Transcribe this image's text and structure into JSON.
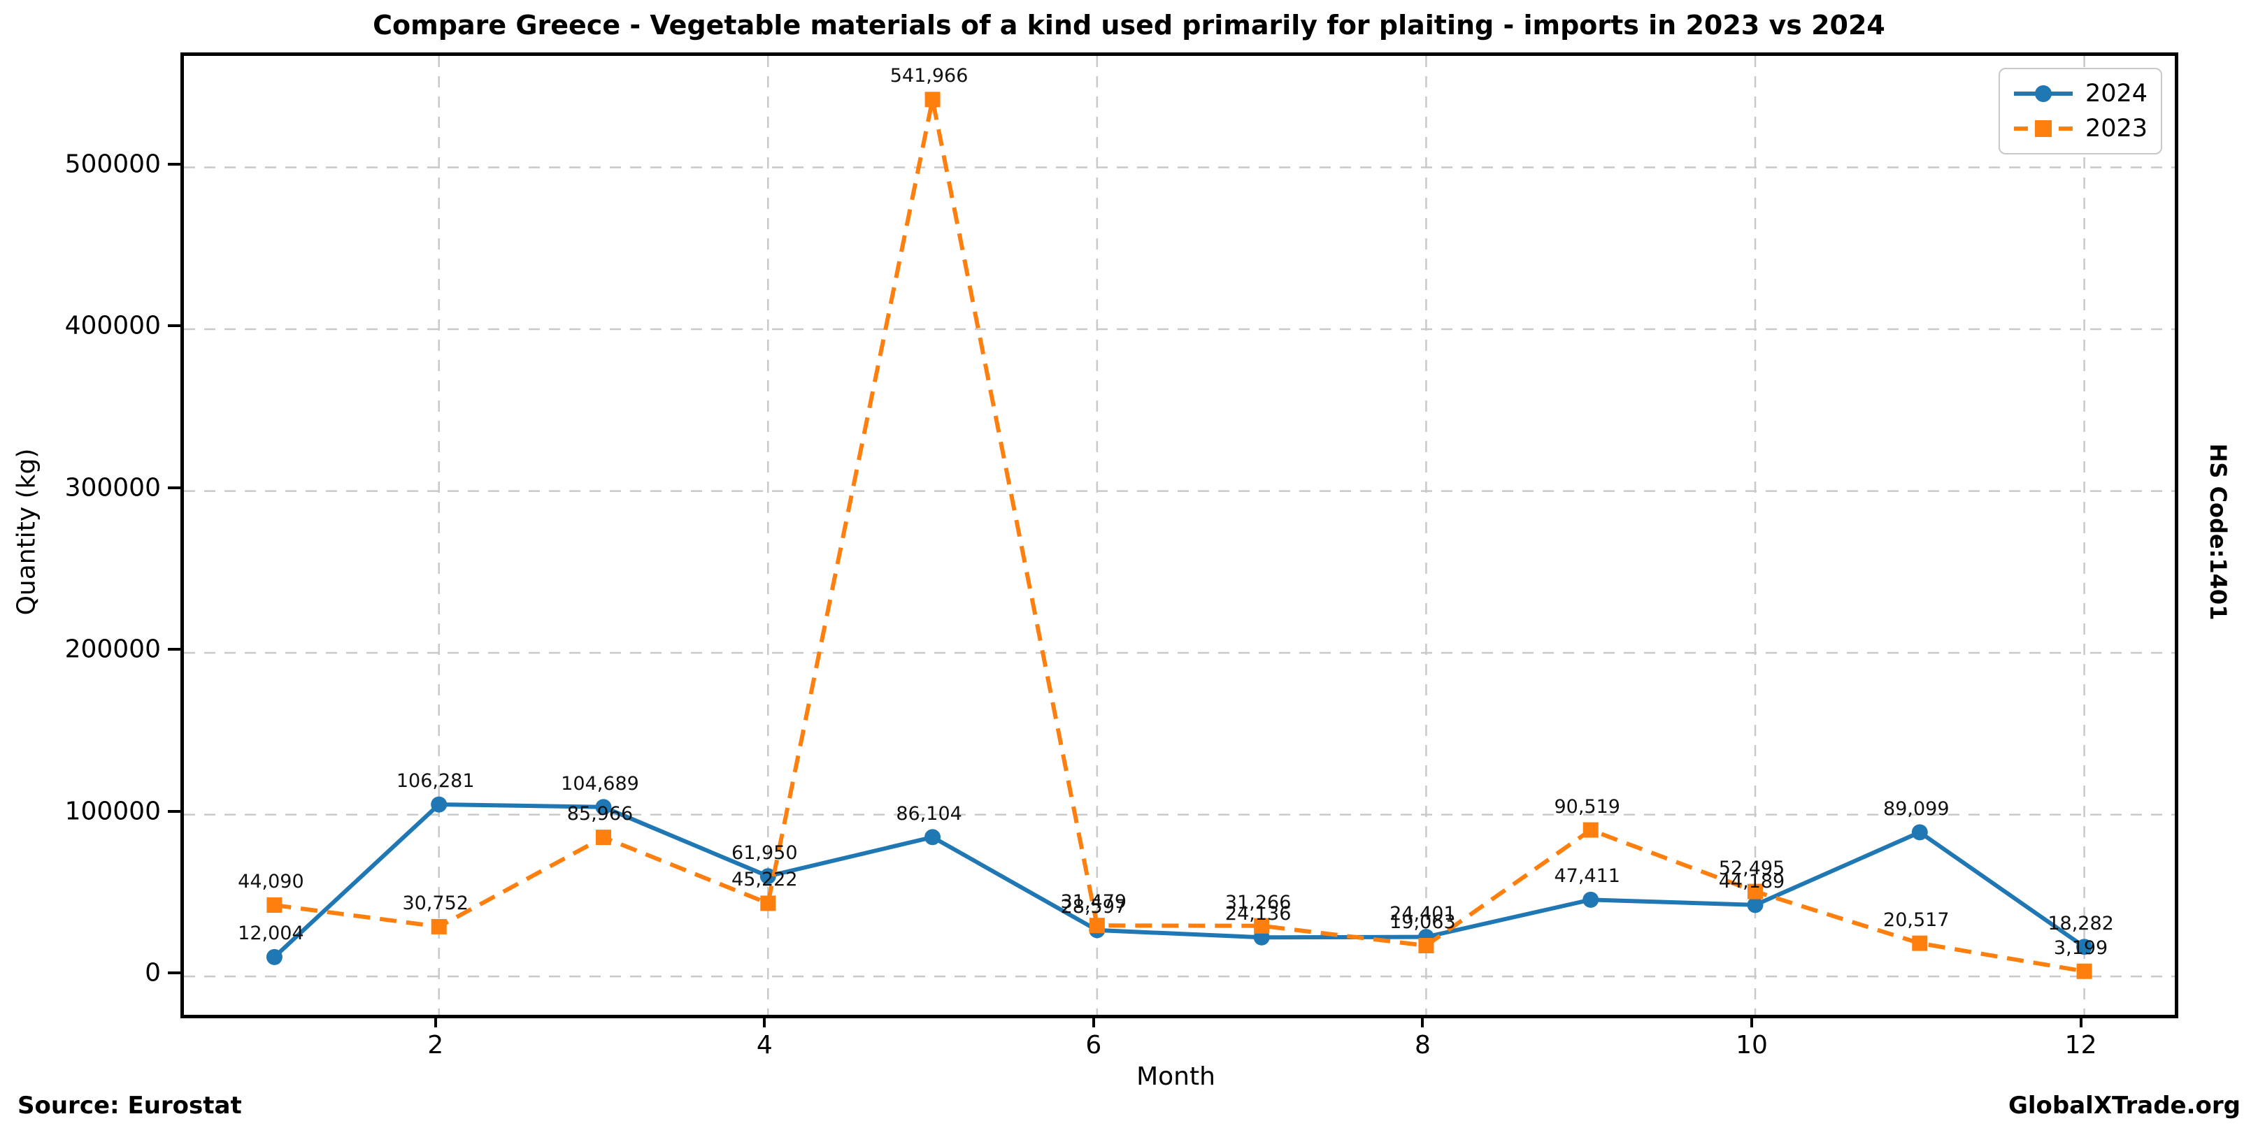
{
  "header": {
    "title": "Compare Greece - Vegetable materials of a kind used primarily for plaiting - imports in 2023 vs 2024"
  },
  "footer": {
    "source": "Source: Eurostat",
    "brand": "GlobalXTrade.org"
  },
  "side_label": "HS Code:1401",
  "colors": {
    "series_2024": "#1f77b4",
    "series_2023": "#ff7f0e",
    "grid": "#c9c9c9",
    "axis": "#000000"
  },
  "chart_data": {
    "type": "line",
    "title": "Compare Greece - Vegetable materials of a kind used primarily for plaiting - imports in 2023 vs 2024",
    "xlabel": "Month",
    "ylabel": "Quantity (kg)",
    "x": [
      1,
      2,
      3,
      4,
      5,
      6,
      7,
      8,
      9,
      10,
      11,
      12
    ],
    "xticks": [
      2,
      4,
      6,
      8,
      10,
      12
    ],
    "yticks": [
      0,
      100000,
      200000,
      300000,
      400000,
      500000
    ],
    "xlim": [
      0.45,
      12.55
    ],
    "ylim": [
      -23700,
      568900
    ],
    "grid": true,
    "legend_position": "upper right",
    "series": [
      {
        "name": "2024",
        "color": "#1f77b4",
        "line_style": "solid",
        "marker": "circle",
        "values": [
          12004,
          106281,
          104689,
          61950,
          86104,
          28597,
          24136,
          24401,
          47411,
          44189,
          89099,
          18282
        ],
        "labels": [
          "12,004",
          "106,281",
          "104,689",
          "61,950",
          "86,104",
          "28,597",
          "24,136",
          "24,401",
          "47,411",
          "44,189",
          "89,099",
          "18,282"
        ]
      },
      {
        "name": "2023",
        "color": "#ff7f0e",
        "line_style": "dashed",
        "marker": "square",
        "values": [
          44090,
          30752,
          85966,
          45222,
          541966,
          31479,
          31266,
          19063,
          90519,
          52495,
          20517,
          3199
        ],
        "labels": [
          "44,090",
          "30,752",
          "85,966",
          "45,222",
          "541,966",
          "31,479",
          "31,266",
          "19,063",
          "90,519",
          "52,495",
          "20,517",
          "3,199"
        ]
      }
    ]
  }
}
